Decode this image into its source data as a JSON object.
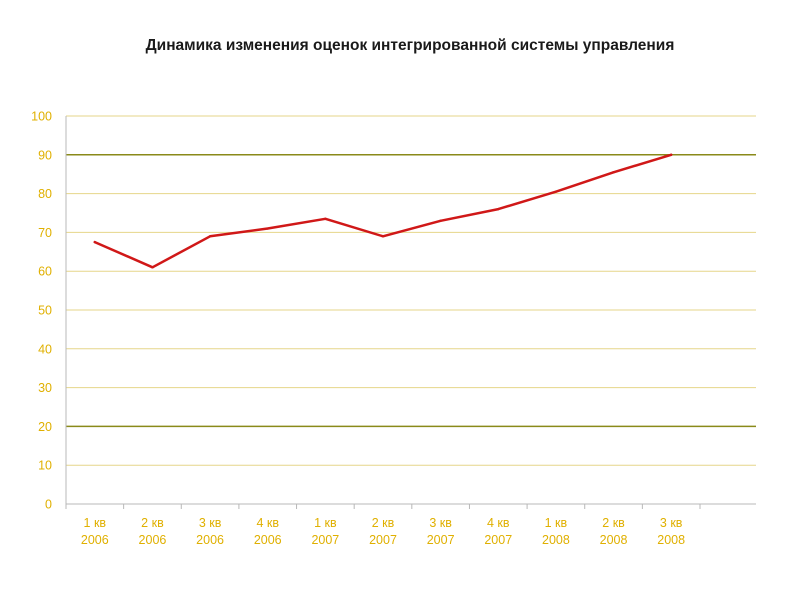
{
  "chart_data": {
    "type": "line",
    "title": "Динамика изменения оценок интегрированной системы управления",
    "categories": [
      [
        "1 кв",
        "2006"
      ],
      [
        "2 кв",
        "2006"
      ],
      [
        "3 кв",
        "2006"
      ],
      [
        "4 кв",
        "2006"
      ],
      [
        "1 кв",
        "2007"
      ],
      [
        "2 кв",
        "2007"
      ],
      [
        "3 кв",
        "2007"
      ],
      [
        "4 кв",
        "2007"
      ],
      [
        "1 кв",
        "2008"
      ],
      [
        "2 кв",
        "2008"
      ],
      [
        "3 кв",
        "2008"
      ]
    ],
    "series": [
      {
        "values": [
          67.5,
          61,
          69,
          71,
          73.5,
          69,
          73,
          76,
          80.5,
          85.5,
          90
        ]
      }
    ],
    "ylim": [
      0,
      100
    ],
    "yticks": [
      0,
      10,
      20,
      30,
      40,
      50,
      60,
      70,
      80,
      90,
      100
    ],
    "highlight_gridlines": [
      20,
      90
    ],
    "grid": true,
    "legend": "none",
    "colors": {
      "line": "#d01818",
      "grid": "#e6d68a",
      "grid_highlight": "#8a8a1a",
      "axis": "#b8b8b8",
      "tick_text": "#e0b000"
    }
  }
}
